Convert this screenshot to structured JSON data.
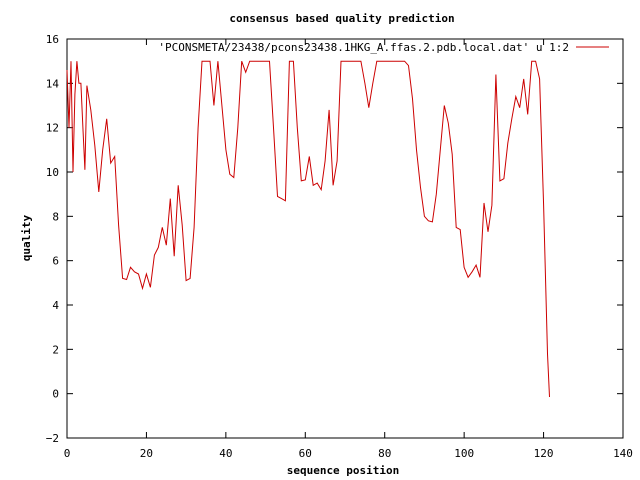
{
  "chart_data": {
    "type": "line",
    "title": "consensus based quality prediction",
    "xlabel": "sequence position",
    "ylabel": "quality",
    "xlim": [
      0,
      140
    ],
    "ylim": [
      -2,
      16
    ],
    "xticks": [
      0,
      20,
      40,
      60,
      80,
      100,
      120,
      140
    ],
    "yticks": [
      -2,
      0,
      2,
      4,
      6,
      8,
      10,
      12,
      14,
      16
    ],
    "legend_position": "top-right",
    "series": [
      {
        "name": "'PCONSMETA/23438/pcons23438.1HKG_A.ffas.2.pdb.local.dat' u 1:2",
        "color": "#cc0000",
        "x": [
          0,
          0.5,
          1,
          1.5,
          2,
          2.5,
          3,
          3.5,
          4,
          4.5,
          5,
          6,
          7,
          8,
          9,
          10,
          11,
          12,
          13,
          14,
          15,
          16,
          17,
          18,
          19,
          20,
          21,
          22,
          23,
          24,
          25,
          26,
          27,
          28,
          29,
          30,
          31,
          32,
          33,
          34,
          35,
          36,
          37,
          38,
          39,
          40,
          41,
          42,
          43,
          44,
          45,
          46,
          47,
          48,
          49,
          50,
          51,
          52,
          53,
          54,
          55,
          56,
          57,
          58,
          59,
          60,
          61,
          62,
          63,
          64,
          65,
          66,
          67,
          68,
          69,
          70,
          71,
          72,
          73,
          74,
          75,
          76,
          77,
          78,
          79,
          80,
          81,
          82,
          83,
          84,
          85,
          86,
          87,
          88,
          89,
          90,
          91,
          92,
          93,
          94,
          95,
          96,
          97,
          98,
          99,
          100,
          101,
          102,
          103,
          104,
          105,
          106,
          107,
          108,
          109,
          110,
          111,
          112,
          113,
          114,
          115,
          116,
          117,
          118,
          119,
          120,
          121,
          121.5
        ],
        "values": [
          14.6,
          12.0,
          15.0,
          10.0,
          13.5,
          15.0,
          14.0,
          14.0,
          12.0,
          10.1,
          13.9,
          12.8,
          11.2,
          9.1,
          11.0,
          12.4,
          10.4,
          10.7,
          7.6,
          5.2,
          5.15,
          5.7,
          5.5,
          5.4,
          4.75,
          5.4,
          4.8,
          6.25,
          6.6,
          7.5,
          6.7,
          8.8,
          6.2,
          9.4,
          7.6,
          5.1,
          5.2,
          7.5,
          12.0,
          15.0,
          15.0,
          15.0,
          13.0,
          15.0,
          13.0,
          11.0,
          9.9,
          9.75,
          12.0,
          15.0,
          14.5,
          15.0,
          15.0,
          15.0,
          15.0,
          15.0,
          15.0,
          12.0,
          8.9,
          8.8,
          8.7,
          15.0,
          15.0,
          12.0,
          9.6,
          9.65,
          10.7,
          9.4,
          9.5,
          9.2,
          10.5,
          12.8,
          9.4,
          10.5,
          15.0,
          15.0,
          15.0,
          15.0,
          15.0,
          15.0,
          14.0,
          12.9,
          14.0,
          15.0,
          15.0,
          15.0,
          15.0,
          15.0,
          15.0,
          15.0,
          15.0,
          14.8,
          13.3,
          11.0,
          9.3,
          8.0,
          7.8,
          7.75,
          9.0,
          11.0,
          13.0,
          12.2,
          10.8,
          7.5,
          7.4,
          5.7,
          5.25,
          5.5,
          5.8,
          5.25,
          8.6,
          7.3,
          8.5,
          14.4,
          9.6,
          9.7,
          11.3,
          12.4,
          13.4,
          12.9,
          14.2,
          12.6,
          15.0,
          15.0,
          14.2,
          8.5,
          1.8,
          -0.15
        ]
      }
    ]
  }
}
